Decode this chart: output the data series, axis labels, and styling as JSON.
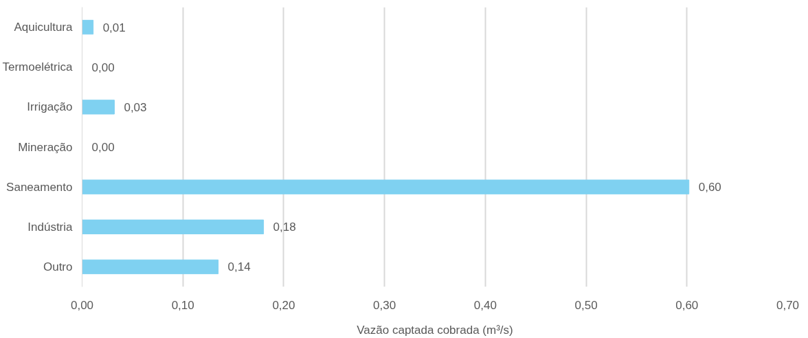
{
  "chart_data": {
    "type": "bar",
    "orientation": "horizontal",
    "xlabel": "Vazão captada cobrada (m³/s)",
    "categories": [
      "Aquicultura",
      "Termoelétrica",
      "Irrigação",
      "Mineração",
      "Saneamento",
      "Indústria",
      "Outro"
    ],
    "values": [
      0.011,
      0.0,
      0.032,
      0.0,
      0.602,
      0.18,
      0.135
    ],
    "value_labels": [
      "0,01",
      "0,00",
      "0,03",
      "0,00",
      "0,60",
      "0,18",
      "0,14"
    ],
    "color": "#7fd1f1",
    "xlim": [
      0,
      0.7
    ],
    "xticks": [
      {
        "value": 0,
        "label": "0,00"
      },
      {
        "value": 0.1,
        "label": "0,10"
      },
      {
        "value": 0.2,
        "label": "0,20"
      },
      {
        "value": 0.3,
        "label": "0,30"
      },
      {
        "value": 0.4,
        "label": "0,40"
      },
      {
        "value": 0.5,
        "label": "0,50"
      },
      {
        "value": 0.6,
        "label": "0,60"
      },
      {
        "value": 0.7,
        "label": "0,70"
      }
    ],
    "grid": "x"
  }
}
